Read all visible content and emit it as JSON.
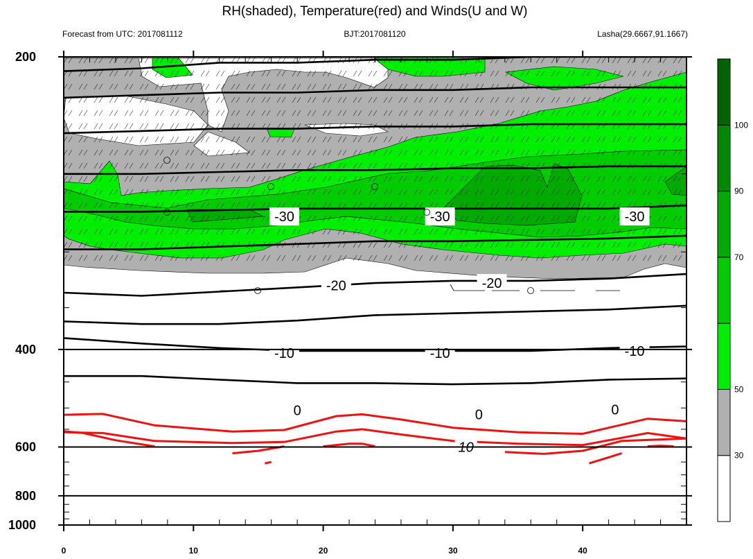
{
  "chart_data": {
    "type": "heatmap",
    "title": "RH(shaded), Temperature(red) and Winds(U and W)",
    "subtitle_left": "Forecast from UTC: 2017081112",
    "subtitle_center": "BJT:2017081120",
    "subtitle_right": "Lasha(29.6667,91.1667)",
    "x_ticks": [
      "0",
      "10",
      "20",
      "30",
      "40"
    ],
    "x_tick_values": [
      0,
      10,
      20,
      30,
      40
    ],
    "xlim": [
      0,
      48
    ],
    "y_ticks": [
      "200",
      "400",
      "600",
      "800",
      "1000"
    ],
    "y_tick_values": [
      200,
      400,
      600,
      800,
      1000
    ],
    "ylim": [
      1000,
      200
    ],
    "y_scale": "reciprocal",
    "colorbar": {
      "labels": [
        "30",
        "50",
        "70",
        "90",
        "100"
      ],
      "bins": [
        {
          "to": 30,
          "color": "#ffffff"
        },
        {
          "from": 30,
          "to": 50,
          "color": "#b0b0b0"
        },
        {
          "from": 50,
          "to": 70,
          "color": "#00ee00"
        },
        {
          "from": 70,
          "to": 80,
          "color": "#00cc00"
        },
        {
          "from": 80,
          "to": 90,
          "color": "#00aa00"
        },
        {
          "from": 90,
          "to": 100,
          "color": "#008800"
        },
        {
          "from": 100,
          "color": "#006400"
        }
      ]
    },
    "isotherm_labels": [
      {
        "text": "-30",
        "x": 17,
        "p": 275
      },
      {
        "text": "-30",
        "x": 29,
        "p": 275
      },
      {
        "text": "-30",
        "x": 44,
        "p": 275
      },
      {
        "text": "-20",
        "x": 21,
        "p": 328
      },
      {
        "text": "-20",
        "x": 33,
        "p": 326
      },
      {
        "text": "-10",
        "x": 17,
        "p": 405
      },
      {
        "text": "-10",
        "x": 29,
        "p": 405
      },
      {
        "text": "-10",
        "x": 44,
        "p": 402
      },
      {
        "text": "0",
        "x": 18,
        "p": 505
      },
      {
        "text": "0",
        "x": 32,
        "p": 514
      },
      {
        "text": "0",
        "x": 42.5,
        "p": 503
      },
      {
        "text": "10",
        "x": 31,
        "p": 600
      }
    ],
    "black_isotherms": [
      {
        "x": [
          0,
          6,
          12,
          18,
          24,
          30,
          36,
          42,
          48
        ],
        "p": [
          205,
          204,
          202,
          202,
          201,
          201,
          200,
          200,
          200
        ]
      },
      {
        "x": [
          0,
          6,
          12,
          18,
          24,
          30,
          36,
          42,
          48
        ],
        "p": [
          215,
          214,
          213,
          213,
          212,
          212,
          211,
          211,
          211
        ]
      },
      {
        "x": [
          0,
          6,
          12,
          18,
          24,
          30,
          36,
          42,
          48
        ],
        "p": [
          230,
          229,
          228,
          228,
          227,
          227,
          226,
          226,
          226
        ]
      },
      {
        "x": [
          0,
          6,
          12,
          18,
          24,
          30,
          36,
          42,
          48
        ],
        "p": [
          250,
          250,
          249,
          248,
          248,
          247,
          247,
          246,
          246
        ]
      },
      {
        "x": [
          0,
          6,
          12,
          18,
          24,
          30,
          36,
          42,
          48
        ],
        "p": [
          272,
          272,
          271,
          270,
          270,
          270,
          270,
          270,
          268
        ]
      },
      {
        "x": [
          0,
          6,
          12,
          18,
          24,
          30,
          36,
          42,
          48
        ],
        "p": [
          298,
          298,
          296,
          294,
          292,
          292,
          291,
          290,
          288
        ]
      },
      {
        "x": [
          0,
          6,
          12,
          18,
          24,
          30,
          36,
          42,
          48
        ],
        "p": [
          335,
          338,
          334,
          330,
          326,
          324,
          324,
          322,
          318
        ]
      },
      {
        "x": [
          0,
          6,
          12,
          18,
          24,
          30,
          36,
          42,
          48
        ],
        "p": [
          365,
          368,
          368,
          364,
          358,
          356,
          354,
          352,
          348
        ]
      },
      {
        "x": [
          0,
          6,
          12,
          18,
          24,
          30,
          36,
          42,
          48
        ],
        "p": [
          385,
          392,
          398,
          402,
          402,
          402,
          402,
          398,
          396
        ]
      },
      {
        "x": [
          0,
          6,
          12,
          18,
          24,
          30,
          36,
          42,
          48
        ],
        "p": [
          440,
          440,
          446,
          452,
          452,
          454,
          452,
          446,
          444
        ]
      }
    ],
    "zero_isotherm": {
      "x": [
        0,
        5,
        10,
        15,
        20,
        23,
        28,
        32,
        38,
        43,
        48
      ],
      "p": [
        478,
        490,
        508,
        508,
        488,
        478,
        494,
        508,
        512,
        493,
        485
      ]
    },
    "red_isotherms": [
      {
        "x": [
          0,
          3,
          7,
          13,
          17,
          21,
          23,
          26,
          30,
          35,
          40,
          45,
          48
        ],
        "p": [
          515,
          513,
          540,
          556,
          552,
          518,
          514,
          526,
          546,
          558,
          562,
          524,
          530
        ]
      },
      {
        "x": [
          0,
          3,
          7,
          13,
          17,
          21,
          23,
          26,
          30,
          35,
          40,
          45,
          48
        ],
        "p": [
          558,
          560,
          582,
          588,
          585,
          556,
          550,
          564,
          582,
          590,
          594,
          560,
          575
        ]
      },
      {
        "x": [
          0,
          1.5,
          4,
          7
        ],
        "p": [
          555,
          560,
          580,
          598
        ]
      },
      {
        "x": [
          13,
          15,
          17
        ],
        "p": [
          620,
          612,
          598
        ]
      },
      {
        "x": [
          20,
          22,
          23,
          24
        ],
        "p": [
          598,
          590,
          590,
          598
        ]
      },
      {
        "x": [
          34,
          37,
          40,
          43,
          48
        ],
        "p": [
          616,
          622,
          612,
          582,
          575
        ]
      },
      {
        "x": [
          15.5,
          16
        ],
        "p": [
          655,
          650
        ]
      },
      {
        "x": [
          40.5,
          43
        ],
        "p": [
          655,
          620
        ]
      },
      {
        "x": [
          45,
          46,
          47
        ],
        "p": [
          598,
          596,
          598
        ]
      }
    ]
  }
}
